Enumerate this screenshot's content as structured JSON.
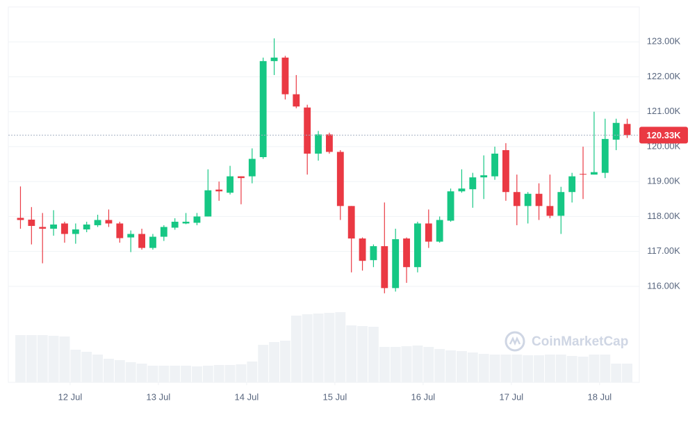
{
  "chart_data": {
    "type": "candlestick",
    "watermark": "CoinMarketCap",
    "up_color": "#16c784",
    "down_color": "#ea3943",
    "grid": true,
    "x": [
      11.4375,
      11.5625,
      11.6875,
      11.8125,
      11.9375,
      12.0625,
      12.1875,
      12.3125,
      12.4375,
      12.5625,
      12.6875,
      12.8125,
      12.9375,
      13.0625,
      13.1875,
      13.3125,
      13.4375,
      13.5625,
      13.6875,
      13.8125,
      13.9375,
      14.0625,
      14.1875,
      14.3125,
      14.4375,
      14.5625,
      14.6875,
      14.8125,
      14.9375,
      15.0625,
      15.1875,
      15.3125,
      15.4375,
      15.5625,
      15.6875,
      15.8125,
      15.9375,
      16.0625,
      16.1875,
      16.3125,
      16.4375,
      16.5625,
      16.6875,
      16.8125,
      16.9375,
      17.0625,
      17.1875,
      17.3125,
      17.4375,
      17.5625,
      17.6875,
      17.8125,
      17.9375,
      18.0625,
      18.1875,
      18.3125
    ],
    "open": [
      117960,
      117910,
      117700,
      117650,
      117800,
      117500,
      117630,
      117750,
      117900,
      117800,
      117400,
      117500,
      117100,
      117420,
      117680,
      117800,
      117820,
      118000,
      118770,
      118680,
      119150,
      119150,
      119700,
      122450,
      122550,
      121500,
      121120,
      119800,
      120350,
      119850,
      118300,
      117370,
      116750,
      117150,
      115950,
      117370,
      116550,
      117800,
      117280,
      117880,
      118720,
      118780,
      119120,
      119150,
      119900,
      118700,
      118300,
      118650,
      118300,
      118020,
      118700,
      119220,
      119200,
      119250,
      120200,
      120650
    ],
    "high": [
      118860,
      118270,
      118100,
      118180,
      117850,
      117800,
      117850,
      118050,
      118200,
      117850,
      117600,
      117650,
      117500,
      117750,
      117950,
      118100,
      118100,
      119350,
      119000,
      119450,
      119150,
      119950,
      122550,
      123100,
      122600,
      122050,
      121200,
      120450,
      120400,
      119900,
      118300,
      117400,
      117200,
      118400,
      117650,
      117400,
      117850,
      118200,
      118000,
      118800,
      119350,
      119250,
      119750,
      120000,
      120100,
      119200,
      118700,
      118950,
      119200,
      118850,
      119250,
      120000,
      121000,
      120800,
      120800,
      120800
    ],
    "low": [
      117650,
      117200,
      116660,
      117450,
      117250,
      117220,
      117550,
      117700,
      117700,
      117250,
      116980,
      117050,
      117050,
      117300,
      117620,
      117780,
      117750,
      118000,
      118450,
      118630,
      118350,
      118950,
      119650,
      122050,
      121350,
      121100,
      119200,
      119600,
      119800,
      117900,
      116400,
      116450,
      116550,
      115800,
      115850,
      116100,
      116400,
      117100,
      117250,
      117850,
      118680,
      118250,
      118500,
      119050,
      118450,
      117750,
      117800,
      117900,
      117950,
      117500,
      118400,
      118500,
      119200,
      119100,
      119900,
      120250
    ],
    "close": [
      117900,
      117730,
      117650,
      117770,
      117500,
      117630,
      117770,
      117900,
      117800,
      117380,
      117500,
      117100,
      117420,
      117700,
      117850,
      117850,
      118000,
      118750,
      118720,
      119150,
      119100,
      119650,
      122450,
      122550,
      121500,
      121150,
      119800,
      120350,
      119850,
      118300,
      117370,
      116730,
      117150,
      115950,
      117350,
      116550,
      117800,
      117280,
      117900,
      118720,
      118800,
      119120,
      119180,
      119800,
      118700,
      118300,
      118650,
      118300,
      118020,
      118700,
      119150,
      119200,
      119270,
      120220,
      120680,
      120330
    ],
    "volume": {
      "color": "#eff2f5",
      "lim": [
        0,
        120
      ],
      "values": [
        68,
        68,
        68,
        67,
        66,
        47,
        44,
        40,
        34,
        32,
        29,
        27,
        24,
        24,
        24,
        24,
        23,
        24,
        25,
        25,
        26,
        30,
        54,
        58,
        60,
        96,
        98,
        99,
        100,
        101,
        82,
        81,
        80,
        51,
        51,
        52,
        53,
        51,
        48,
        46,
        45,
        43,
        41,
        40,
        40,
        40,
        39,
        39,
        40,
        40,
        38,
        37,
        40,
        40,
        27,
        27
      ]
    },
    "current_price": {
      "value": 120330,
      "label": "120.33K"
    },
    "xlim": [
      11.3,
      18.45
    ],
    "xticks": [
      {
        "value": 12,
        "label": "12 Jul"
      },
      {
        "value": 13,
        "label": "13 Jul"
      },
      {
        "value": 14,
        "label": "14 Jul"
      },
      {
        "value": 15,
        "label": "15 Jul"
      },
      {
        "value": 16,
        "label": "16 Jul"
      },
      {
        "value": 17,
        "label": "17 Jul"
      },
      {
        "value": 18,
        "label": "18 Jul"
      }
    ],
    "ylim": [
      113250,
      124000
    ],
    "yticks": [
      {
        "value": 116000,
        "label": "116.00K"
      },
      {
        "value": 117000,
        "label": "117.00K"
      },
      {
        "value": 118000,
        "label": "118.00K"
      },
      {
        "value": 119000,
        "label": "119.00K"
      },
      {
        "value": 120000,
        "label": "120.00K"
      },
      {
        "value": 121000,
        "label": "121.00K"
      },
      {
        "value": 122000,
        "label": "122.00K"
      },
      {
        "value": 123000,
        "label": "123.00K"
      }
    ]
  }
}
